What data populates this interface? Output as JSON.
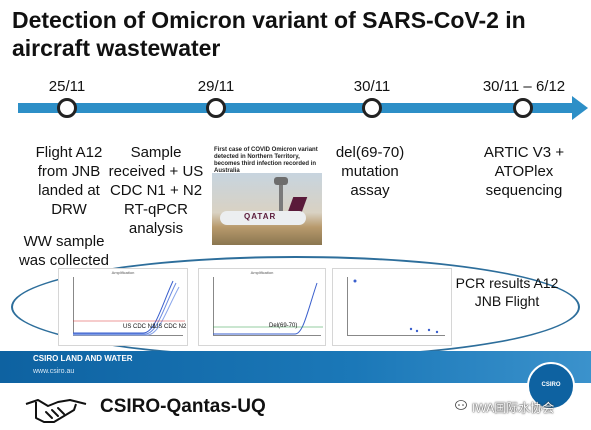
{
  "title": "Detection of Omicron variant of SARS-CoV-2 in aircraft wastewater",
  "timeline": {
    "dates": [
      "25/11",
      "29/11",
      "30/11",
      "30/11 – 6/12"
    ],
    "event_1": "Flight A12 from JNB landed at DRW",
    "event_1b": "WW sample was collected",
    "event_2": "Sample received + US CDC N1 + N2 RT-qPCR analysis",
    "event_3": "del(69-70) mutation assay",
    "event_4": "ARTIC V3 + ATOPlex sequencing"
  },
  "news": {
    "headline": "First case of COVID Omicron variant detected in Northern Territory, becomes third infection recorded in Australia",
    "plane_text": "QATAR"
  },
  "charts": {
    "panel_1_title": "Amplification",
    "panel_1_label_a": "US CDC N1",
    "panel_1_label_b": "US CDC N2",
    "panel_2_title": "Amplification",
    "panel_2_label": "Del(69-70)"
  },
  "pcr_result": "PCR results A12 JNB Flight",
  "banner": {
    "name": "CSIRO LAND AND WATER",
    "url": "www.csiro.au"
  },
  "logo_text": "CSIRO",
  "footer": {
    "title": "CSIRO-Qantas-UQ"
  },
  "watermark": "IWA国际水协会",
  "colors": {
    "timeline": "#2d8fc7",
    "banner": "#0e62a1",
    "ellipse": "#2d6e9b"
  }
}
